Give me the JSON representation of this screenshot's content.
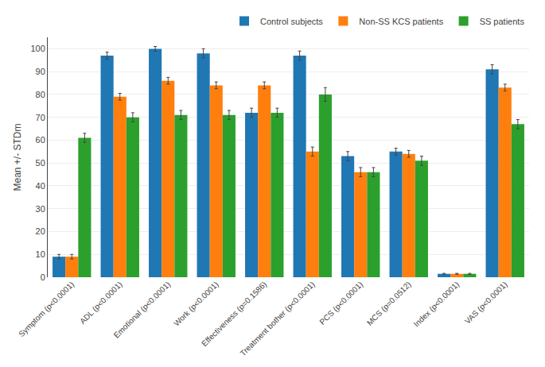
{
  "chart_data": {
    "type": "bar",
    "categories": [
      "Symptom (p<0.0001)",
      "ADL (p<0.0001)",
      "Emotional (p<0.0001)",
      "Work (p<0.0001)",
      "Effectiveness (p=0.1586)",
      "Treatment bother (p<0.0001)",
      "PCS (p<0.0001)",
      "MCS (p=0.0512)",
      "Index (p<0.0001)",
      "VAS (p<0.0001)"
    ],
    "series": [
      {
        "name": "Control subjects",
        "values": [
          9,
          97,
          100,
          98,
          72,
          97,
          53,
          55,
          1.5,
          91
        ],
        "errors": [
          1,
          1.5,
          1,
          2,
          2,
          2,
          2,
          1.5,
          0.2,
          2
        ]
      },
      {
        "name": "Non-SS KCS patients",
        "values": [
          9,
          79,
          86,
          84,
          84,
          55,
          46,
          54,
          1.5,
          83
        ],
        "errors": [
          1,
          1.5,
          1.5,
          1.5,
          1.5,
          2,
          2,
          1.5,
          0.2,
          1.5
        ]
      },
      {
        "name": "SS patients",
        "values": [
          61,
          70,
          71,
          71,
          72,
          80,
          46,
          51,
          1.5,
          67
        ],
        "errors": [
          2,
          2,
          2,
          2,
          2,
          3,
          2,
          2,
          0.2,
          2
        ]
      }
    ],
    "ylabel": "Mean +/- STDm",
    "ylim": [
      0,
      105
    ],
    "yticks": [
      0,
      10,
      20,
      30,
      40,
      50,
      60,
      70,
      80,
      90,
      100
    ],
    "grid": true,
    "legend": "upper right"
  }
}
